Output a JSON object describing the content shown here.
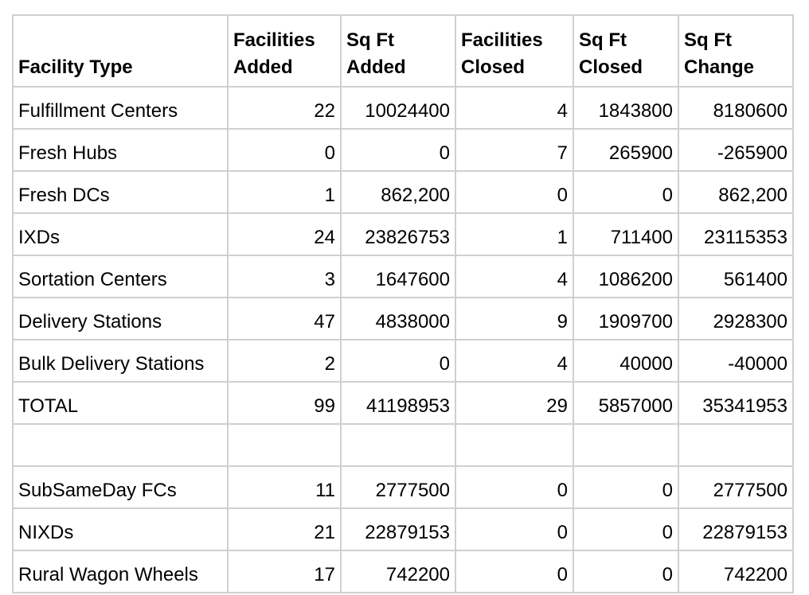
{
  "headers": [
    {
      "lines": [
        "Facility Type"
      ]
    },
    {
      "lines": [
        "Facilities",
        "Added"
      ]
    },
    {
      "lines": [
        "Sq Ft",
        "Added"
      ]
    },
    {
      "lines": [
        "Facilities",
        "Closed"
      ]
    },
    {
      "lines": [
        "Sq Ft",
        "Closed"
      ]
    },
    {
      "lines": [
        "Sq Ft",
        "Change"
      ]
    }
  ],
  "rows": [
    {
      "type": "Fulfillment Centers",
      "facilities_added": "22",
      "sqft_added": "10024400",
      "facilities_closed": "4",
      "sqft_closed": "1843800",
      "sqft_change": "8180600"
    },
    {
      "type": "Fresh Hubs",
      "facilities_added": "0",
      "sqft_added": "0",
      "facilities_closed": "7",
      "sqft_closed": "265900",
      "sqft_change": "-265900"
    },
    {
      "type": "Fresh DCs",
      "facilities_added": "1",
      "sqft_added": "862,200",
      "facilities_closed": "0",
      "sqft_closed": "0",
      "sqft_change": "862,200"
    },
    {
      "type": "IXDs",
      "facilities_added": "24",
      "sqft_added": "23826753",
      "facilities_closed": "1",
      "sqft_closed": "711400",
      "sqft_change": "23115353"
    },
    {
      "type": "Sortation Centers",
      "facilities_added": "3",
      "sqft_added": "1647600",
      "facilities_closed": "4",
      "sqft_closed": "1086200",
      "sqft_change": "561400"
    },
    {
      "type": "Delivery Stations",
      "facilities_added": "47",
      "sqft_added": "4838000",
      "facilities_closed": "9",
      "sqft_closed": "1909700",
      "sqft_change": "2928300"
    },
    {
      "type": "Bulk Delivery Stations",
      "facilities_added": "2",
      "sqft_added": "0",
      "facilities_closed": "4",
      "sqft_closed": "40000",
      "sqft_change": "-40000"
    },
    {
      "type": "TOTAL",
      "facilities_added": "99",
      "sqft_added": "41198953",
      "facilities_closed": "29",
      "sqft_closed": "5857000",
      "sqft_change": "35341953"
    },
    {
      "type": "",
      "facilities_added": "",
      "sqft_added": "",
      "facilities_closed": "",
      "sqft_closed": "",
      "sqft_change": ""
    },
    {
      "type": "SubSameDay FCs",
      "facilities_added": "11",
      "sqft_added": "2777500",
      "facilities_closed": "0",
      "sqft_closed": "0",
      "sqft_change": "2777500"
    },
    {
      "type": "NIXDs",
      "facilities_added": "21",
      "sqft_added": "22879153",
      "facilities_closed": "0",
      "sqft_closed": "0",
      "sqft_change": "22879153"
    },
    {
      "type": "Rural Wagon Wheels",
      "facilities_added": "17",
      "sqft_added": "742200",
      "facilities_closed": "0",
      "sqft_closed": "0",
      "sqft_change": "742200"
    }
  ]
}
